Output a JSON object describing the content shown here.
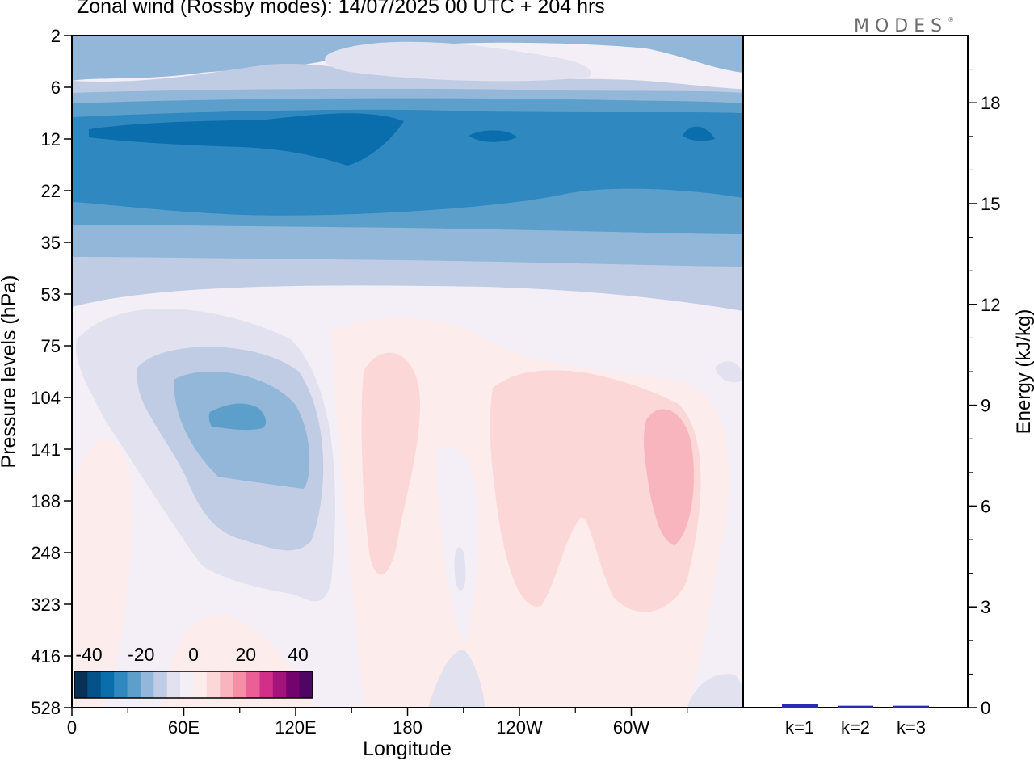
{
  "title": "Zonal wind (Rossby modes):  14/07/2025  00 UTC  + 204 hrs",
  "logo": {
    "text": "MODES",
    "mark": "®"
  },
  "chart_data": [
    {
      "type": "heatmap",
      "field": "Zonal wind",
      "xlabel": "Longitude",
      "ylabel": "Pressure levels (hPa)",
      "x_ticks": [
        "0",
        "60E",
        "120E",
        "180",
        "120W",
        "60W"
      ],
      "y_ticks": [
        "2",
        "6",
        "12",
        "22",
        "35",
        "53",
        "75",
        "104",
        "141",
        "188",
        "248",
        "323",
        "416",
        "528"
      ],
      "colorbar": {
        "tick_labels": [
          "-40",
          "-20",
          "0",
          "20",
          "40"
        ],
        "levels": [
          -40,
          -35,
          -30,
          -25,
          -20,
          -15,
          -10,
          -5,
          0,
          5,
          10,
          15,
          20,
          25,
          30,
          35,
          40
        ],
        "colors": [
          "#083157",
          "#05528b",
          "#0a6dac",
          "#2f88bf",
          "#5d9fcb",
          "#92b7d8",
          "#c0cce3",
          "#e1e1ef",
          "#f4eff6",
          "#fdecec",
          "#fbd7d7",
          "#f8b5bd",
          "#f58fa6",
          "#ec5f96",
          "#d12f88",
          "#a4137a",
          "#73046d",
          "#4e0564"
        ]
      },
      "bands": [
        {
          "from_level": "2",
          "to_level": "6",
          "value": -10
        },
        {
          "from_level": "6",
          "to_level": "12",
          "value": -20
        },
        {
          "from_level": "12",
          "to_level": "22",
          "value": -25
        },
        {
          "from_level": "22",
          "to_level": "35",
          "value": -20
        },
        {
          "from_level": "35",
          "to_level": "53",
          "value": -10
        },
        {
          "from_level": "53",
          "to_level": "528",
          "value": 0
        }
      ],
      "features": [
        {
          "center_lon": 100,
          "center_level": "120",
          "value": -20,
          "kind": "minimum"
        },
        {
          "center_lon": 165,
          "center_level": "190",
          "value": 8,
          "kind": "maximum"
        },
        {
          "center_lon": 290,
          "center_level": "180",
          "value": 15,
          "kind": "maximum"
        }
      ]
    },
    {
      "type": "bar",
      "categories": [
        "k=1",
        "k=2",
        "k=3"
      ],
      "values": [
        0.08,
        0.02,
        0.02
      ],
      "ylabel": "Energy (kJ/kg)",
      "y_ticks": [
        "0",
        "3",
        "6",
        "9",
        "12",
        "15",
        "18"
      ],
      "ylim": [
        0,
        20
      ],
      "bar_color": "#2b2bb0"
    }
  ]
}
